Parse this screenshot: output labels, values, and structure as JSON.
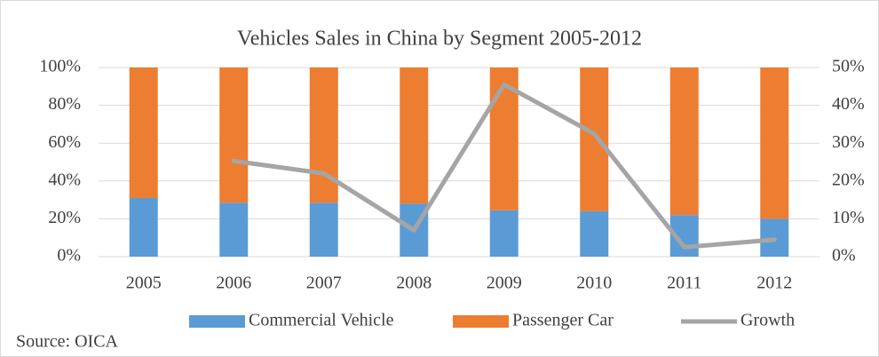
{
  "chart_data": {
    "type": "bar",
    "title": "Vehicles Sales in China by Segment 2005-2012",
    "categories": [
      "2005",
      "2006",
      "2007",
      "2008",
      "2009",
      "2010",
      "2011",
      "2012"
    ],
    "series": [
      {
        "name": "Commercial Vehicle",
        "color": "#5b9bd5",
        "values": [
          31,
          28.5,
          28.5,
          28,
          24.5,
          24,
          22,
          20
        ]
      },
      {
        "name": "Passenger Car",
        "color": "#ed7d31",
        "values": [
          69,
          71.5,
          71.5,
          72,
          75.5,
          76,
          78,
          80
        ]
      },
      {
        "name": "Growth",
        "color": "#a5a5a5",
        "type": "line",
        "axis": "y2",
        "values": [
          null,
          25.3,
          22,
          7,
          45.5,
          32.5,
          2.5,
          4.5
        ]
      }
    ],
    "stacked": true,
    "ylim": [
      0,
      100
    ],
    "yticks": [
      {
        "value": 0,
        "label": "0%"
      },
      {
        "value": 20,
        "label": "20%"
      },
      {
        "value": 40,
        "label": "40%"
      },
      {
        "value": 60,
        "label": "60%"
      },
      {
        "value": 80,
        "label": "80%"
      },
      {
        "value": 100,
        "label": "100%"
      }
    ],
    "y2lim": [
      0,
      50
    ],
    "y2ticks": [
      {
        "value": 0,
        "label": "0%"
      },
      {
        "value": 10,
        "label": "10%"
      },
      {
        "value": 20,
        "label": "20%"
      },
      {
        "value": 30,
        "label": "30%"
      },
      {
        "value": 40,
        "label": "40%"
      },
      {
        "value": 50,
        "label": "50%"
      }
    ],
    "grid": true,
    "legend": "bottom",
    "source": "Source: OICA"
  }
}
